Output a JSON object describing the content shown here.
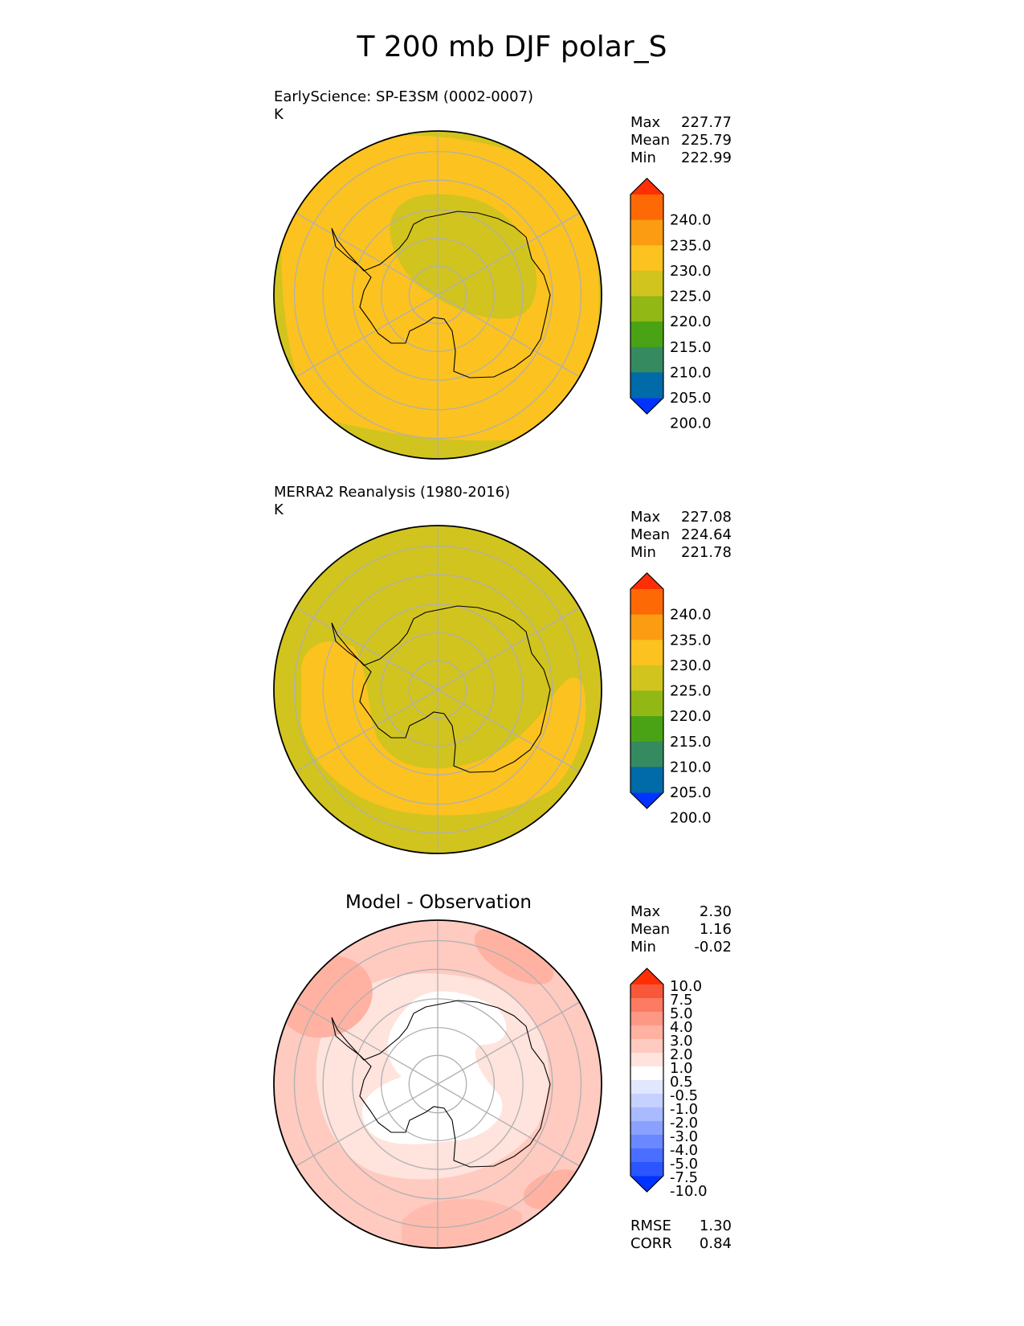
{
  "figure_title": "T 200 mb DJF polar_S",
  "colors": {
    "abs_levels": [
      "#0033ff",
      "#006ba8",
      "#368a5f",
      "#4aa314",
      "#91b814",
      "#d1c41f",
      "#fcc21f",
      "#fc9c12",
      "#fc6905",
      "#ff2e05"
    ],
    "diff_levels": [
      "#0033ff",
      "#2a55ff",
      "#4a6eff",
      "#6a88ff",
      "#8aa1ff",
      "#a9baff",
      "#c6d1ff",
      "#e1e7ff",
      "#ffffff",
      "#ffe3dd",
      "#ffcac0",
      "#ffb2a2",
      "#fe9885",
      "#fc7b62",
      "#f8573a",
      "#ff2e05"
    ],
    "coast": "#000000",
    "grid": "#b0b0b0"
  },
  "chart_data": [
    {
      "type": "heatmap",
      "projection": "south-polar stereographic",
      "title_left": "EarlyScience: SP-E3SM (0002-0007)",
      "units": "K",
      "stats": [
        {
          "label": "Max",
          "value": "227.77"
        },
        {
          "label": "Mean",
          "value": "225.79"
        },
        {
          "label": "Min",
          "value": "222.99"
        }
      ],
      "colorbar_ticks": [
        "240.0",
        "235.0",
        "230.0",
        "225.0",
        "220.0",
        "215.0",
        "210.0",
        "205.0",
        "200.0"
      ],
      "field_summary": {
        "background_level": "225-230",
        "inner_level": "220-225",
        "edge_level": "220-225"
      }
    },
    {
      "type": "heatmap",
      "projection": "south-polar stereographic",
      "title_left": "MERRA2 Reanalysis (1980-2016)",
      "units": "K",
      "stats": [
        {
          "label": "Max",
          "value": "227.08"
        },
        {
          "label": "Mean",
          "value": "224.64"
        },
        {
          "label": "Min",
          "value": "221.78"
        }
      ],
      "colorbar_ticks": [
        "240.0",
        "235.0",
        "230.0",
        "225.0",
        "220.0",
        "215.0",
        "210.0",
        "205.0",
        "200.0"
      ],
      "field_summary": {
        "background_level": "220-225",
        "ring_level": "225-230"
      }
    },
    {
      "type": "heatmap",
      "projection": "south-polar stereographic",
      "title_center": "Model - Observation",
      "stats": [
        {
          "label": "Max",
          "value": "2.30"
        },
        {
          "label": "Mean",
          "value": "1.16"
        },
        {
          "label": "Min",
          "value": "-0.02"
        }
      ],
      "colorbar_ticks": [
        "10.0",
        "7.5",
        "5.0",
        "4.0",
        "3.0",
        "2.0",
        "1.0",
        "0.5",
        "-0.5",
        "-1.0",
        "-2.0",
        "-3.0",
        "-4.0",
        "-5.0",
        "-7.5",
        "-10.0"
      ],
      "metrics": [
        {
          "label": "RMSE",
          "value": "1.30"
        },
        {
          "label": "CORR",
          "value": "0.84"
        }
      ]
    }
  ]
}
